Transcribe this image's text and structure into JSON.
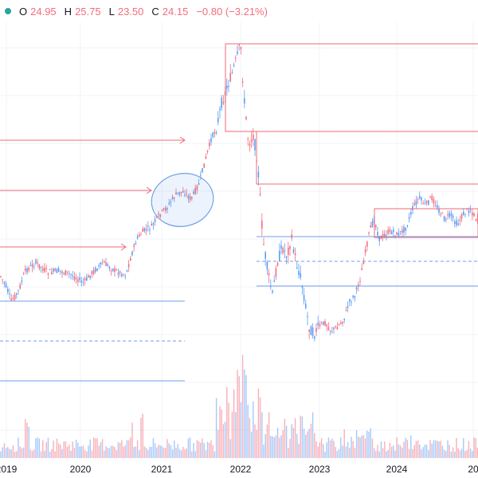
{
  "colors": {
    "up": "#5b9cf6",
    "down": "#f26d7d",
    "drawing_red": "#ef6a78",
    "drawing_blue": "#6f9fe8",
    "text": "#131722",
    "grid": "#f0f3fa"
  },
  "legend": {
    "status_color": "#26a69a",
    "open_label": "O",
    "open_value": "24.95",
    "high_label": "H",
    "high_value": "25.75",
    "low_label": "L",
    "low_value": "23.50",
    "close_label": "C",
    "close_value": "24.15",
    "change": "−0.80 (−3.21%)"
  },
  "time_axis": {
    "labels": [
      "2019",
      "2020",
      "2021",
      "2022",
      "2023",
      "2024",
      "20"
    ]
  },
  "chart_data": {
    "type": "candlestick",
    "x_axis": [
      "2019",
      "2020",
      "2021",
      "2022",
      "2023",
      "2024"
    ],
    "last_candle": {
      "open": 24.95,
      "high": 25.75,
      "low": 23.5,
      "close": 24.15
    },
    "change": -0.8,
    "change_percent": -3.21,
    "has_volume_pane": true,
    "grid": true
  },
  "drawings": {
    "red_arrows": 3,
    "red_boxes": 3,
    "blue_lines": 5,
    "blue_dashed_lines": 2,
    "ellipses": 1
  }
}
